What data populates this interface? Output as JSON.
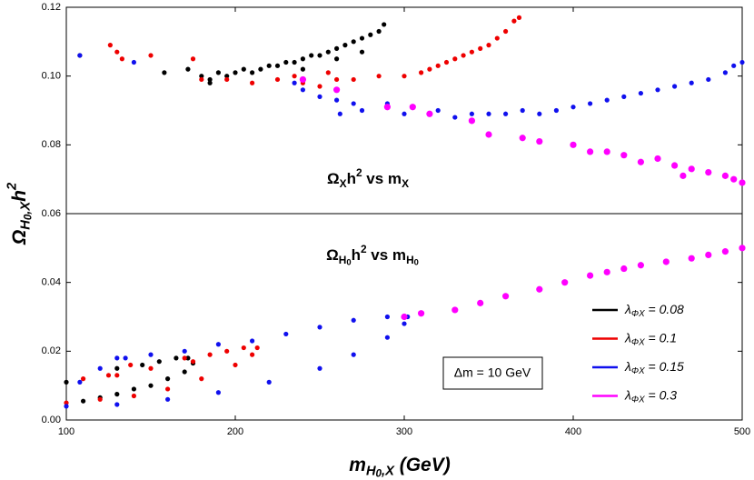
{
  "chart_data": {
    "type": "scatter",
    "xlim": [
      100,
      500
    ],
    "xticks": [
      100,
      200,
      300,
      400,
      500
    ],
    "ylim": [
      0,
      0.12
    ],
    "yticks": [
      {
        "value": 0,
        "label": "0.00"
      },
      {
        "value": 0.02,
        "label": "0.02"
      },
      {
        "value": 0.04,
        "label": "0.04"
      },
      {
        "value": 0.06,
        "label": "0.06"
      },
      {
        "value": 0.08,
        "label": "0.08"
      },
      {
        "value": 0.1,
        "label": "0.10"
      },
      {
        "value": 0.12,
        "label": "0.12"
      }
    ],
    "hline": 0.06,
    "x_label": [
      {
        "text": "m"
      },
      {
        "text": "H",
        "shift": "sub"
      },
      {
        "text": "0",
        "shift": "subsub"
      },
      {
        "text": ",X",
        "shift": "sub"
      },
      {
        "text": " (GeV)"
      }
    ],
    "y_label": [
      {
        "text": "Ω"
      },
      {
        "text": "H",
        "shift": "sub"
      },
      {
        "text": "0",
        "shift": "subsub"
      },
      {
        "text": ",X",
        "shift": "sub"
      },
      {
        "text": "h"
      },
      {
        "text": "2",
        "shift": "sup"
      }
    ],
    "annotations": [
      [
        {
          "text": "Ω"
        },
        {
          "text": "X",
          "shift": "sub"
        },
        {
          "text": "h"
        },
        {
          "text": "2",
          "shift": "sup"
        },
        {
          "text": " vs m"
        },
        {
          "text": "X",
          "shift": "sub"
        }
      ],
      [
        {
          "text": "Ω"
        },
        {
          "text": "H",
          "shift": "sub"
        },
        {
          "text": "0",
          "shift": "subsub"
        },
        {
          "text": "h"
        },
        {
          "text": "2",
          "shift": "sup"
        },
        {
          "text": " vs m"
        },
        {
          "text": "H",
          "shift": "sub"
        },
        {
          "text": "0",
          "shift": "subsub"
        }
      ]
    ],
    "box_label": "Δm = 10 GeV",
    "series": [
      {
        "name": [
          {
            "text": "λ"
          },
          {
            "text": "ΦX",
            "shift": "sub"
          },
          {
            "text": " = 0.08"
          }
        ],
        "color": "#000000",
        "x": [
          108,
          158,
          172,
          180,
          185,
          190,
          195,
          200,
          205,
          210,
          215,
          220,
          225,
          230,
          235,
          240,
          245,
          250,
          255,
          260,
          265,
          270,
          275,
          280,
          285,
          288,
          185,
          240,
          260,
          275,
          100,
          110,
          120,
          130,
          140,
          150,
          160,
          170,
          175,
          172,
          165,
          155,
          145,
          130
        ],
        "y": [
          0.106,
          0.101,
          0.102,
          0.1,
          0.099,
          0.101,
          0.1,
          0.101,
          0.102,
          0.101,
          0.102,
          0.103,
          0.103,
          0.104,
          0.104,
          0.105,
          0.106,
          0.106,
          0.107,
          0.108,
          0.109,
          0.11,
          0.111,
          0.112,
          0.113,
          0.115,
          0.098,
          0.102,
          0.105,
          0.107,
          0.011,
          0.0055,
          0.0065,
          0.0075,
          0.009,
          0.01,
          0.012,
          0.014,
          0.0165,
          0.018,
          0.018,
          0.017,
          0.016,
          0.015
        ]
      },
      {
        "name": [
          {
            "text": "λ"
          },
          {
            "text": "ΦX",
            "shift": "sub"
          },
          {
            "text": " = 0.1"
          }
        ],
        "color": "#ee0000",
        "x": [
          126,
          130,
          133,
          150,
          175,
          180,
          195,
          210,
          225,
          240,
          250,
          260,
          270,
          285,
          300,
          310,
          315,
          320,
          325,
          330,
          335,
          340,
          345,
          350,
          355,
          360,
          365,
          368,
          255,
          235,
          100,
          120,
          140,
          160,
          180,
          200,
          210,
          213,
          205,
          195,
          185,
          170,
          150,
          138,
          130,
          125,
          110,
          175
        ],
        "y": [
          0.109,
          0.107,
          0.105,
          0.106,
          0.105,
          0.099,
          0.099,
          0.098,
          0.099,
          0.098,
          0.097,
          0.099,
          0.099,
          0.1,
          0.1,
          0.101,
          0.102,
          0.103,
          0.104,
          0.105,
          0.106,
          0.107,
          0.108,
          0.109,
          0.111,
          0.113,
          0.116,
          0.117,
          0.101,
          0.1,
          0.005,
          0.006,
          0.007,
          0.009,
          0.012,
          0.016,
          0.019,
          0.021,
          0.021,
          0.02,
          0.019,
          0.018,
          0.015,
          0.016,
          0.013,
          0.013,
          0.012,
          0.017
        ]
      },
      {
        "name": [
          {
            "text": "λ"
          },
          {
            "text": "ΦX",
            "shift": "sub"
          },
          {
            "text": " = 0.15"
          }
        ],
        "color": "#1010ee",
        "x": [
          108,
          140,
          240,
          250,
          260,
          270,
          275,
          290,
          300,
          320,
          330,
          340,
          350,
          360,
          370,
          380,
          390,
          400,
          410,
          420,
          430,
          440,
          450,
          460,
          470,
          480,
          490,
          495,
          500,
          262,
          235,
          100,
          130,
          160,
          190,
          220,
          250,
          270,
          290,
          300,
          302,
          290,
          270,
          250,
          230,
          210,
          190,
          170,
          150,
          135,
          130,
          108,
          120
        ],
        "y": [
          0.106,
          0.104,
          0.096,
          0.094,
          0.093,
          0.092,
          0.09,
          0.092,
          0.089,
          0.09,
          0.088,
          0.089,
          0.089,
          0.089,
          0.09,
          0.089,
          0.09,
          0.091,
          0.092,
          0.093,
          0.094,
          0.095,
          0.096,
          0.097,
          0.098,
          0.099,
          0.101,
          0.103,
          0.104,
          0.089,
          0.098,
          0.004,
          0.0045,
          0.006,
          0.008,
          0.011,
          0.015,
          0.019,
          0.024,
          0.028,
          0.03,
          0.03,
          0.029,
          0.027,
          0.025,
          0.023,
          0.022,
          0.02,
          0.019,
          0.018,
          0.018,
          0.011,
          0.015
        ]
      },
      {
        "name": [
          {
            "text": "λ"
          },
          {
            "text": "ΦX",
            "shift": "sub"
          },
          {
            "text": " = 0.3"
          }
        ],
        "color": "#ff00ff",
        "x": [
          240,
          260,
          290,
          305,
          315,
          340,
          350,
          370,
          380,
          400,
          410,
          420,
          430,
          440,
          450,
          460,
          470,
          480,
          490,
          495,
          500,
          465,
          300,
          310,
          330,
          345,
          360,
          380,
          395,
          410,
          420,
          430,
          440,
          455,
          470,
          480,
          490,
          500
        ],
        "y": [
          0.099,
          0.096,
          0.091,
          0.091,
          0.089,
          0.087,
          0.083,
          0.082,
          0.081,
          0.08,
          0.078,
          0.078,
          0.077,
          0.075,
          0.076,
          0.074,
          0.073,
          0.072,
          0.071,
          0.07,
          0.069,
          0.071,
          0.03,
          0.031,
          0.032,
          0.034,
          0.036,
          0.038,
          0.04,
          0.042,
          0.043,
          0.044,
          0.045,
          0.046,
          0.047,
          0.048,
          0.049,
          0.05
        ]
      }
    ]
  }
}
